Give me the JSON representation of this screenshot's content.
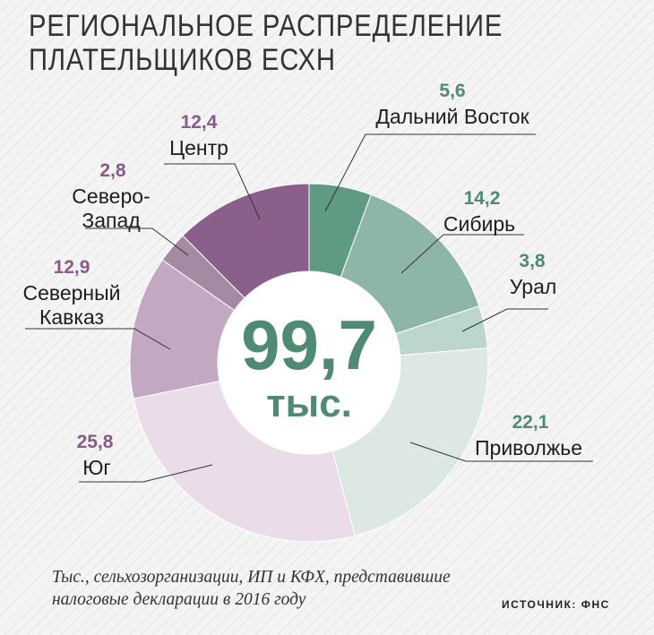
{
  "chart_data": {
    "type": "pie",
    "title": "РЕГИОНАЛЬНОЕ РАСПРЕДЕЛЕНИЕ ПЛАТЕЛЬЩИКОВ ЕСХН",
    "title_lines": [
      "РЕГИОНАЛЬНОЕ РАСПРЕДЕЛЕНИЕ",
      "ПЛАТЕЛЬЩИКОВ ЕСХН"
    ],
    "total": "99,7",
    "total_unit": "тыс.",
    "slices": [
      {
        "name": "Дальний Восток",
        "name_lines": [
          "Дальний Восток"
        ],
        "label": "5,6",
        "value": 5.6,
        "color": "#5f9a83"
      },
      {
        "name": "Сибирь",
        "name_lines": [
          "Сибирь"
        ],
        "label": "14,2",
        "value": 14.2,
        "color": "#8db6a6"
      },
      {
        "name": "Урал",
        "name_lines": [
          "Урал"
        ],
        "label": "3,8",
        "value": 3.8,
        "color": "#bcd6cc"
      },
      {
        "name": "Приволжье",
        "name_lines": [
          "Приволжье"
        ],
        "label": "22,1",
        "value": 22.1,
        "color": "#dde8e3"
      },
      {
        "name": "Юг",
        "name_lines": [
          "Юг"
        ],
        "label": "25,8",
        "value": 25.8,
        "color": "#eadde9"
      },
      {
        "name": "Северный Кавказ",
        "name_lines": [
          "Северный",
          "Кавказ"
        ],
        "label": "12,9",
        "value": 12.9,
        "color": "#c2a9c1"
      },
      {
        "name": "Северо-Запад",
        "name_lines": [
          "Северо-",
          "Запад"
        ],
        "label": "2,8",
        "value": 2.8,
        "color": "#a58aa4"
      },
      {
        "name": "Центр",
        "name_lines": [
          "Центр"
        ],
        "label": "12,4",
        "value": 12.4,
        "color": "#8a5f89"
      }
    ]
  },
  "colors": {
    "green_value": "#4f8a73",
    "purple_value": "#875b86",
    "text": "#1e1e1e"
  },
  "note_lines": [
    "Тыс., сельхозорганизации, ИП и КФХ, представившие",
    "налоговые декларации в 2016 году"
  ],
  "source": "ИСТОЧНИК: ФНС"
}
